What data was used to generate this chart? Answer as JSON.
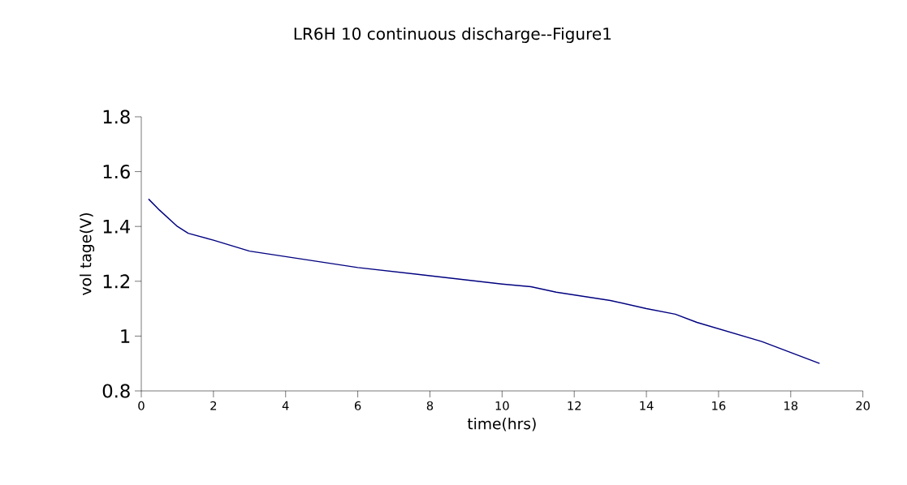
{
  "chart_data": {
    "type": "line",
    "title": "LR6H 10     continuous discharge--Figure1",
    "xlabel": "time(hrs)",
    "ylabel": "vol tage(V)",
    "xlim": [
      0,
      20
    ],
    "xticks": [
      0,
      2,
      4,
      6,
      8,
      10,
      12,
      14,
      16,
      18,
      20
    ],
    "ylim": [
      0.8,
      1.8
    ],
    "yticks": [
      {
        "value": 0.8,
        "label": "0.8"
      },
      {
        "value": 1.0,
        "label": "1"
      },
      {
        "value": 1.2,
        "label": "1.2"
      },
      {
        "value": 1.4,
        "label": "1.4"
      },
      {
        "value": 1.6,
        "label": "1.6"
      },
      {
        "value": 1.8,
        "label": "1.8"
      }
    ],
    "series": [
      {
        "color": "#000080",
        "x": [
          0.2,
          0.5,
          1.0,
          1.3,
          2.0,
          2.5,
          3.0,
          4.0,
          6.0,
          8.0,
          10.0,
          10.8,
          11.5,
          13.0,
          14.0,
          14.8,
          15.4,
          17.2,
          18.0,
          18.8
        ],
        "values": [
          1.5,
          1.46,
          1.4,
          1.375,
          1.35,
          1.33,
          1.31,
          1.29,
          1.25,
          1.22,
          1.19,
          1.18,
          1.16,
          1.13,
          1.1,
          1.08,
          1.05,
          0.98,
          0.94,
          0.9
        ]
      }
    ]
  }
}
